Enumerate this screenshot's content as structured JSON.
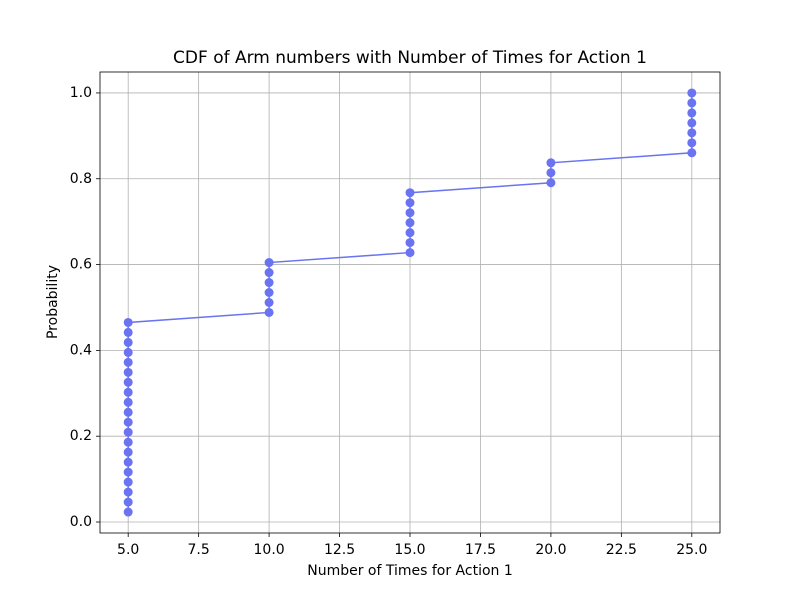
{
  "chart_data": {
    "type": "line",
    "title": "CDF of Arm numbers with Number of Times for Action 1",
    "x_label": "Number of Times for Action 1",
    "y_label": "Probability",
    "series": [
      {
        "color": "#6a74f0",
        "x": [
          5,
          5,
          5,
          5,
          5,
          5,
          5,
          5,
          5,
          5,
          5,
          5,
          5,
          5,
          5,
          5,
          5,
          5,
          5,
          5,
          10,
          10,
          10,
          10,
          10,
          10,
          15,
          15,
          15,
          15,
          15,
          15,
          15,
          20,
          20,
          20,
          25,
          25,
          25,
          25,
          25,
          25,
          25
        ],
        "values": [
          0.0233,
          0.0465,
          0.0698,
          0.093,
          0.1163,
          0.1395,
          0.1628,
          0.186,
          0.2093,
          0.2326,
          0.2558,
          0.2791,
          0.3023,
          0.3256,
          0.3488,
          0.3721,
          0.3953,
          0.4186,
          0.4419,
          0.4651,
          0.4884,
          0.5116,
          0.5349,
          0.5581,
          0.5814,
          0.6047,
          0.6279,
          0.6512,
          0.6744,
          0.6977,
          0.7209,
          0.7442,
          0.7674,
          0.7907,
          0.814,
          0.8372,
          0.8605,
          0.8837,
          0.907,
          0.9302,
          0.9535,
          0.9767,
          1.0
        ]
      }
    ],
    "xlim": [
      4.0,
      26.0
    ],
    "ylim": [
      -0.0256,
      1.0488
    ],
    "xticks": [
      {
        "value": 5,
        "label": "5.0"
      },
      7.5,
      {
        "value": 10,
        "label": "10.0"
      },
      12.5,
      {
        "value": 15,
        "label": "15.0"
      },
      17.5,
      {
        "value": 20,
        "label": "20.0"
      },
      22.5,
      {
        "value": 25,
        "label": "25.0"
      }
    ],
    "yticks": [
      {
        "value": 0,
        "label": "0.0"
      },
      0.2,
      0.4,
      0.6,
      0.8,
      {
        "value": 1,
        "label": "1.0"
      }
    ],
    "grid": true
  }
}
